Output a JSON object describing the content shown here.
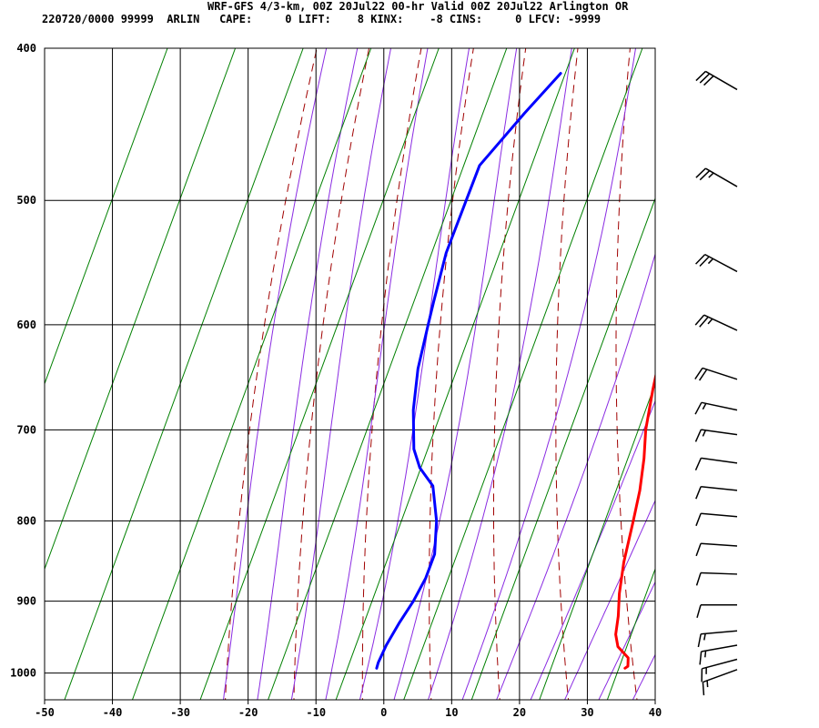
{
  "header": {
    "title": "WRF-GFS 4/3-km, 00Z 20Jul22 00-hr Valid 00Z 20Jul22 Arlington OR",
    "stats": "220720/0000 99999  ARLIN   CAPE:     0 LIFT:    8 KINX:    -8 CINS:     0 LFCV: -9999"
  },
  "colors": {
    "temperature": "#ff0000",
    "dewpoint": "#0000ff",
    "dry_adiabat": "#a00000",
    "moist_adiabat": "#8a2be2",
    "mixing_ratio": "#008000",
    "grid": "#000000",
    "wind_barb": "#000000"
  },
  "chart_data": {
    "type": "line",
    "subtype": "skew-t log-p sounding",
    "title": "WRF-GFS 4/3-km, 00Z 20Jul22 00-hr Valid 00Z 20Jul22 Arlington OR",
    "xlabel": "",
    "ylabel": "",
    "xlim": [
      -50,
      40
    ],
    "ylim": [
      1040,
      400
    ],
    "y_scale": "log",
    "x_ticks": [
      -50,
      -40,
      -30,
      -20,
      -10,
      0,
      10,
      20,
      30,
      40
    ],
    "x_tick_labels": [
      "-50",
      "-40",
      "-30",
      "-20",
      "-10",
      "0",
      "10",
      "20",
      "30",
      "40"
    ],
    "y_ticks": [
      400,
      500,
      600,
      700,
      800,
      900,
      1000
    ],
    "y_tick_labels": [
      "400",
      "500",
      "600",
      "700",
      "800",
      "900",
      "1000"
    ],
    "grid": true,
    "series": [
      {
        "name": "",
        "color": "#ff0000",
        "points": [
          {
            "p": 993,
            "t": 35
          },
          {
            "p": 990,
            "t": 35.2
          },
          {
            "p": 978,
            "t": 34.3
          },
          {
            "p": 962,
            "t": 31.5
          },
          {
            "p": 945,
            "t": 29.8
          },
          {
            "p": 920,
            "t": 28.1
          },
          {
            "p": 890,
            "t": 25.7
          },
          {
            "p": 850,
            "t": 22.8
          },
          {
            "p": 800,
            "t": 19.5
          },
          {
            "p": 765,
            "t": 17
          },
          {
            "p": 730,
            "t": 14
          },
          {
            "p": 700,
            "t": 11
          },
          {
            "p": 660,
            "t": 7.5
          },
          {
            "p": 620,
            "t": 4
          },
          {
            "p": 590,
            "t": 1
          },
          {
            "p": 560,
            "t": -2
          },
          {
            "p": 530,
            "t": -5.5
          },
          {
            "p": 500,
            "t": -8.8
          },
          {
            "p": 470,
            "t": -11.5
          },
          {
            "p": 440,
            "t": -14.5
          },
          {
            "p": 415,
            "t": -17.5
          }
        ]
      },
      {
        "name": "",
        "color": "#0000ff",
        "points": [
          {
            "p": 993,
            "t": -1.6
          },
          {
            "p": 985,
            "t": -2
          },
          {
            "p": 960,
            "t": -2.8
          },
          {
            "p": 930,
            "t": -3.4
          },
          {
            "p": 900,
            "t": -3.8
          },
          {
            "p": 870,
            "t": -4.6
          },
          {
            "p": 840,
            "t": -6
          },
          {
            "p": 800,
            "t": -9.5
          },
          {
            "p": 760,
            "t": -14
          },
          {
            "p": 740,
            "t": -18
          },
          {
            "p": 720,
            "t": -21
          },
          {
            "p": 680,
            "t": -25.5
          },
          {
            "p": 640,
            "t": -29.5
          },
          {
            "p": 600,
            "t": -33
          },
          {
            "p": 580,
            "t": -34.8
          },
          {
            "p": 540,
            "t": -38.5
          },
          {
            "p": 500,
            "t": -41.5
          },
          {
            "p": 475,
            "t": -43.5
          },
          {
            "p": 440,
            "t": -42.8
          },
          {
            "p": 415,
            "t": -42
          }
        ]
      }
    ],
    "wind_barbs": [
      {
        "p": 995,
        "direction_deg": 250,
        "speed_kt": 15
      },
      {
        "p": 980,
        "direction_deg": 255,
        "speed_kt": 15
      },
      {
        "p": 960,
        "direction_deg": 260,
        "speed_kt": 15
      },
      {
        "p": 940,
        "direction_deg": 265,
        "speed_kt": 15
      },
      {
        "p": 905,
        "direction_deg": 270,
        "speed_kt": 10
      },
      {
        "p": 865,
        "direction_deg": 272,
        "speed_kt": 10
      },
      {
        "p": 830,
        "direction_deg": 274,
        "speed_kt": 10
      },
      {
        "p": 795,
        "direction_deg": 275,
        "speed_kt": 10
      },
      {
        "p": 765,
        "direction_deg": 276,
        "speed_kt": 10
      },
      {
        "p": 735,
        "direction_deg": 278,
        "speed_kt": 10
      },
      {
        "p": 705,
        "direction_deg": 278,
        "speed_kt": 15
      },
      {
        "p": 680,
        "direction_deg": 282,
        "speed_kt": 15
      },
      {
        "p": 650,
        "direction_deg": 288,
        "speed_kt": 20
      },
      {
        "p": 605,
        "direction_deg": 295,
        "speed_kt": 25
      },
      {
        "p": 555,
        "direction_deg": 298,
        "speed_kt": 25
      },
      {
        "p": 490,
        "direction_deg": 300,
        "speed_kt": 25
      },
      {
        "p": 425,
        "direction_deg": 300,
        "speed_kt": 30
      }
    ]
  }
}
